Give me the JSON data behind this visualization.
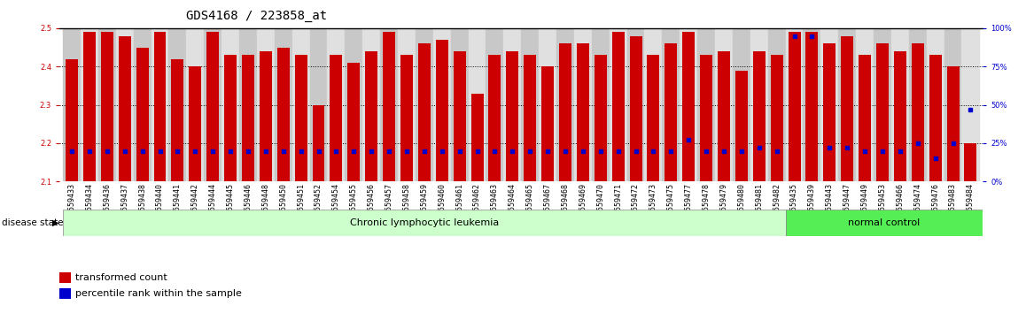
{
  "title": "GDS4168 / 223858_at",
  "samples": [
    "GSM559433",
    "GSM559434",
    "GSM559436",
    "GSM559437",
    "GSM559438",
    "GSM559440",
    "GSM559441",
    "GSM559442",
    "GSM559444",
    "GSM559445",
    "GSM559446",
    "GSM559448",
    "GSM559450",
    "GSM559451",
    "GSM559452",
    "GSM559454",
    "GSM559455",
    "GSM559456",
    "GSM559457",
    "GSM559458",
    "GSM559459",
    "GSM559460",
    "GSM559461",
    "GSM559462",
    "GSM559463",
    "GSM559464",
    "GSM559465",
    "GSM559467",
    "GSM559468",
    "GSM559469",
    "GSM559470",
    "GSM559471",
    "GSM559472",
    "GSM559473",
    "GSM559475",
    "GSM559477",
    "GSM559478",
    "GSM559479",
    "GSM559480",
    "GSM559481",
    "GSM559482",
    "GSM559435",
    "GSM559439",
    "GSM559443",
    "GSM559447",
    "GSM559449",
    "GSM559453",
    "GSM559466",
    "GSM559474",
    "GSM559476",
    "GSM559483",
    "GSM559484"
  ],
  "transformed_count": [
    2.42,
    2.49,
    2.49,
    2.48,
    2.45,
    2.49,
    2.42,
    2.4,
    2.49,
    2.43,
    2.43,
    2.44,
    2.45,
    2.43,
    2.3,
    2.43,
    2.41,
    2.44,
    2.49,
    2.43,
    2.46,
    2.47,
    2.44,
    2.33,
    2.43,
    2.44,
    2.43,
    2.4,
    2.46,
    2.46,
    2.43,
    2.49,
    2.48,
    2.43,
    2.46,
    2.49,
    2.43,
    2.44,
    2.39,
    2.44,
    2.43,
    2.49,
    2.49,
    2.46,
    2.48,
    2.43,
    2.46,
    2.44,
    2.46,
    2.43,
    2.4,
    2.2
  ],
  "percentile_rank": [
    20,
    20,
    20,
    20,
    20,
    20,
    20,
    20,
    20,
    20,
    20,
    20,
    20,
    20,
    20,
    20,
    20,
    20,
    20,
    20,
    20,
    20,
    20,
    20,
    20,
    20,
    20,
    20,
    20,
    20,
    20,
    20,
    20,
    20,
    20,
    27,
    20,
    20,
    20,
    22,
    20,
    95,
    95,
    22,
    22,
    20,
    20,
    20,
    25,
    15,
    25,
    47
  ],
  "disease_groups": [
    {
      "label": "Chronic lymphocytic leukemia",
      "start": 0,
      "end": 41,
      "color": "#ccffcc"
    },
    {
      "label": "normal control",
      "start": 41,
      "end": 51,
      "color": "#55ee55"
    }
  ],
  "ylim_left": [
    2.1,
    2.5
  ],
  "ylim_right": [
    0,
    100
  ],
  "yticks_left": [
    2.1,
    2.2,
    2.3,
    2.4,
    2.5
  ],
  "yticks_right": [
    0,
    25,
    50,
    75,
    100
  ],
  "bar_color": "#cc0000",
  "blue_marker_color": "#0000cc",
  "bar_width": 0.7,
  "title_fontsize": 10,
  "tick_fontsize": 6,
  "label_fontsize": 8,
  "left_tick_color": "#cc0000",
  "right_tick_color": "#0000cc",
  "dotted_lines": [
    2.2,
    2.3,
    2.4
  ],
  "cll_n": 41,
  "nc_n": 11
}
